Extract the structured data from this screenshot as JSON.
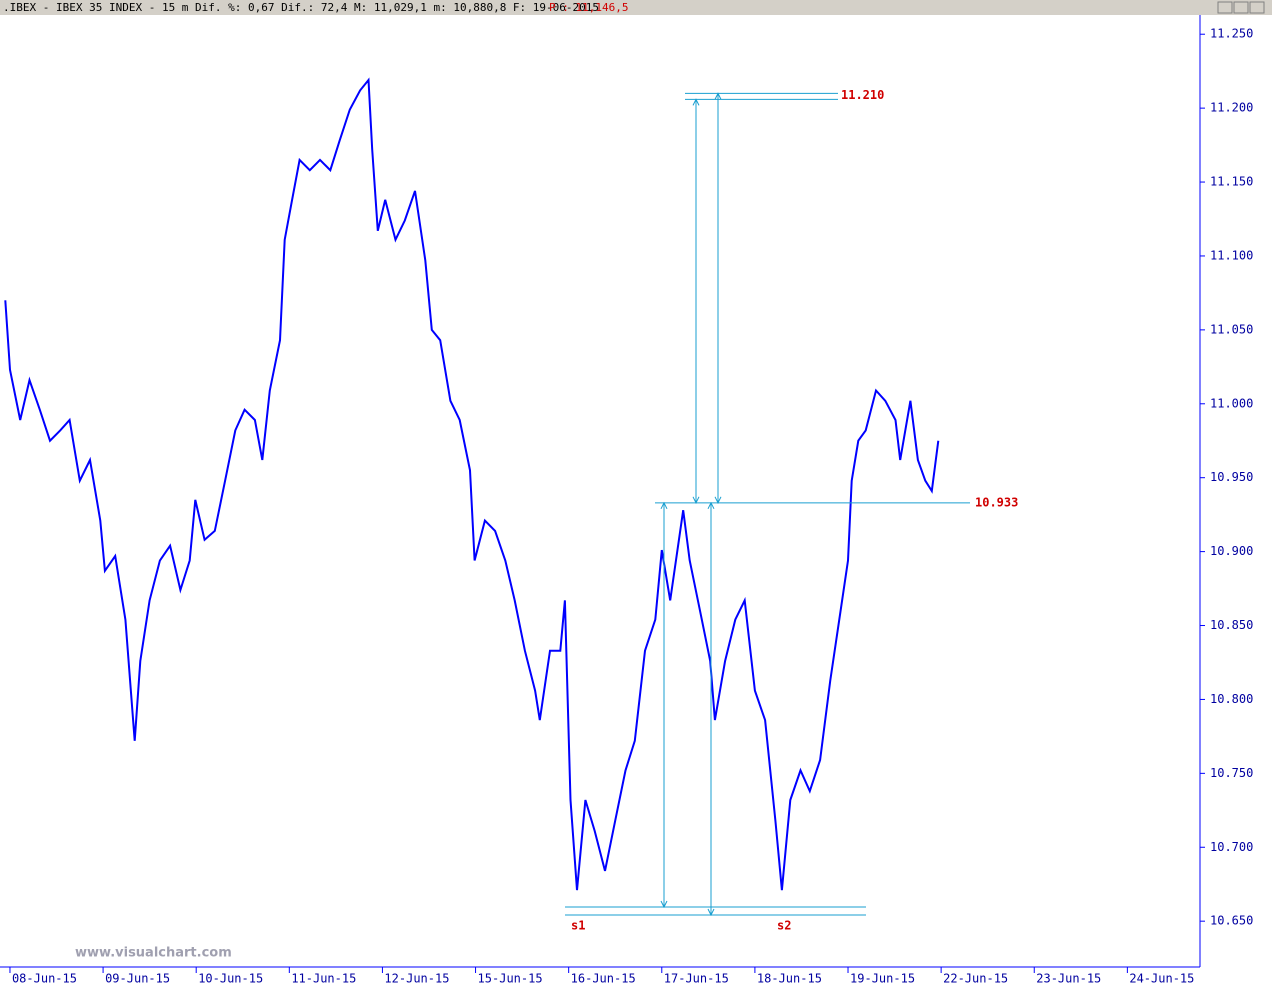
{
  "chart_data": {
    "type": "line",
    "title": ".IBEX - IBEX 35 INDEX -  15 m Dif. %: 0,67 Dif.: 72,4 M: 11,029,1 m: 10,880,8 F: 19-06-2015",
    "last_price": "P : 11,146,5",
    "watermark": "www.visualchart.com",
    "xlim": [
      -0.107,
      12.78
    ],
    "xticks": [
      {
        "value": 0,
        "label": "08-Jun-15"
      },
      {
        "value": 1,
        "label": "09-Jun-15"
      },
      {
        "value": 2,
        "label": "10-Jun-15"
      },
      {
        "value": 3,
        "label": "11-Jun-15"
      },
      {
        "value": 4,
        "label": "12-Jun-15"
      },
      {
        "value": 5,
        "label": "15-Jun-15"
      },
      {
        "value": 6,
        "label": "16-Jun-15"
      },
      {
        "value": 7,
        "label": "17-Jun-15"
      },
      {
        "value": 8,
        "label": "18-Jun-15"
      },
      {
        "value": 9,
        "label": "19-Jun-15"
      },
      {
        "value": 10,
        "label": "22-Jun-15"
      },
      {
        "value": 11,
        "label": "23-Jun-15"
      },
      {
        "value": 12,
        "label": "24-Jun-15"
      }
    ],
    "ylim": [
      10619,
      11263
    ],
    "yticks": [
      {
        "value": 10650,
        "label": "10.650"
      },
      {
        "value": 10700,
        "label": "10.700"
      },
      {
        "value": 10750,
        "label": "10.750"
      },
      {
        "value": 10800,
        "label": "10.800"
      },
      {
        "value": 10850,
        "label": "10.850"
      },
      {
        "value": 10900,
        "label": "10.900"
      },
      {
        "value": 10950,
        "label": "10.950"
      },
      {
        "value": 11000,
        "label": "11.000"
      },
      {
        "value": 11050,
        "label": "11.050"
      },
      {
        "value": 11100,
        "label": "11.100"
      },
      {
        "value": 11150,
        "label": "11.150"
      },
      {
        "value": 11200,
        "label": "11.200"
      },
      {
        "value": 11250,
        "label": "11.250"
      }
    ],
    "color": "#0000ff",
    "x": [
      -0.05,
      0,
      0.11,
      0.21,
      0.32,
      0.43,
      0.54,
      0.64,
      0.75,
      0.86,
      0.97,
      1.02,
      1.13,
      1.24,
      1.34,
      1.4,
      1.5,
      1.61,
      1.72,
      1.83,
      1.93,
      1.99,
      2.09,
      2.2,
      2.31,
      2.42,
      2.52,
      2.63,
      2.71,
      2.79,
      2.9,
      2.95,
      3.03,
      3.11,
      3.22,
      3.33,
      3.44,
      3.54,
      3.65,
      3.76,
      3.85,
      3.89,
      3.95,
      4.03,
      4.14,
      4.24,
      4.35,
      4.46,
      4.53,
      4.62,
      4.73,
      4.83,
      4.94,
      4.99,
      5.1,
      5.21,
      5.32,
      5.42,
      5.53,
      5.64,
      5.69,
      5.8,
      5.91,
      5.96,
      6.02,
      6.09,
      6.18,
      6.28,
      6.39,
      6.5,
      6.61,
      6.71,
      6.82,
      6.93,
      7.0,
      7.09,
      7.23,
      7.3,
      7.41,
      7.52,
      7.57,
      7.68,
      7.79,
      7.89,
      8.0,
      8.11,
      8.22,
      8.29,
      8.38,
      8.49,
      8.59,
      8.7,
      8.81,
      8.92,
      9.0,
      9.04,
      9.11,
      9.19,
      9.3,
      9.4,
      9.51,
      9.56,
      9.67,
      9.75,
      9.83,
      9.9,
      9.97
    ],
    "values": [
      11070,
      11023,
      10989,
      11016,
      10996,
      10975,
      10982,
      10989,
      10948,
      10962,
      10921,
      10887,
      10897,
      10854,
      10772,
      10826,
      10867,
      10894,
      10904,
      10874,
      10894,
      10935,
      10908,
      10914,
      10948,
      10982,
      10996,
      10989,
      10962,
      11009,
      11043,
      11111,
      11138,
      11165,
      11158,
      11165,
      11158,
      11178,
      11199,
      11212,
      11219,
      11172,
      11117,
      11138,
      11111,
      11124,
      11144,
      11097,
      11050,
      11043,
      11002,
      10989,
      10955,
      10894,
      10921,
      10914,
      10894,
      10867,
      10833,
      10806,
      10786,
      10833,
      10833,
      10867,
      10732,
      10671,
      10732,
      10711,
      10684,
      10718,
      10752,
      10772,
      10833,
      10854,
      10901,
      10867,
      10928,
      10894,
      10860,
      10826,
      10786,
      10826,
      10854,
      10867,
      10806,
      10786,
      10718,
      10671,
      10732,
      10752,
      10738,
      10759,
      10813,
      10860,
      10894,
      10948,
      10975,
      10982,
      11009,
      11002,
      10989,
      10962,
      11002,
      10962,
      10948,
      10941,
      10975
    ],
    "levels": [
      {
        "value": 11210,
        "label": "11.210"
      },
      {
        "value": 10933,
        "label": "10.933"
      }
    ],
    "markers": [
      "s1",
      "s2"
    ]
  }
}
